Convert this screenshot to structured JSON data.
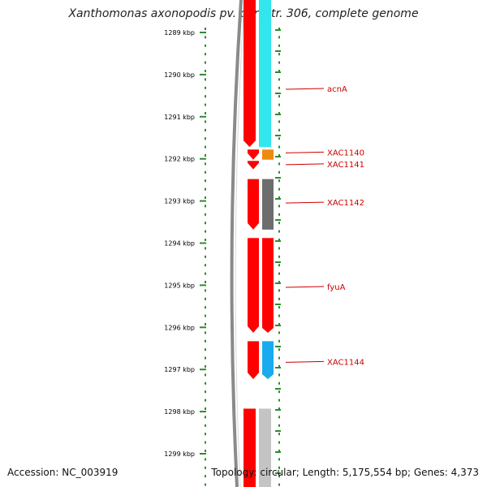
{
  "title": "Xanthomonas axonopodis pv. citri str. 306, complete genome",
  "footer": {
    "accession": "Accession: NC_003919",
    "topology": "Topology: circular; Length: 5,175,554 bp; Genes: 4,373"
  },
  "ruler": {
    "ticks": [
      {
        "kbp": 1289,
        "label": "1289 kbp"
      },
      {
        "kbp": 1290,
        "label": "1290 kbp"
      },
      {
        "kbp": 1291,
        "label": "1291 kbp"
      },
      {
        "kbp": 1292,
        "label": "1292 kbp"
      },
      {
        "kbp": 1293,
        "label": "1293 kbp"
      },
      {
        "kbp": 1294,
        "label": "1294 kbp"
      },
      {
        "kbp": 1295,
        "label": "1295 kbp"
      },
      {
        "kbp": 1296,
        "label": "1296 kbp"
      },
      {
        "kbp": 1297,
        "label": "1297 kbp"
      },
      {
        "kbp": 1298,
        "label": "1298 kbp"
      },
      {
        "kbp": 1299,
        "label": "1299 kbp"
      }
    ]
  },
  "genes": [
    {
      "name": "acnA",
      "start_kbp": 1288.5,
      "end_kbp": 1291.72,
      "color": "#33e6ee",
      "label_kbp": 1290.33
    },
    {
      "name": "XAC1140",
      "start_kbp": 1291.78,
      "end_kbp": 1292.02,
      "color": "#ee8a10",
      "label_kbp": 1291.84
    },
    {
      "name": "XAC1141",
      "start_kbp": 1292.05,
      "end_kbp": 1292.25,
      "color": "#ff0000",
      "label_kbp": 1292.12
    },
    {
      "name": "XAC1142",
      "start_kbp": 1292.48,
      "end_kbp": 1293.68,
      "color": "#6d6d6d",
      "label_kbp": 1293.03
    },
    {
      "name": "fyuA",
      "start_kbp": 1293.88,
      "end_kbp": 1296.13,
      "color": "#ff0000",
      "label_kbp": 1295.03
    },
    {
      "name": "XAC1144",
      "start_kbp": 1296.33,
      "end_kbp": 1297.23,
      "color": "#1aaaee",
      "label_kbp": 1296.81
    },
    {
      "name": "",
      "start_kbp": 1297.93,
      "end_kbp": 1299.5,
      "color": "#c4c4c4",
      "label_kbp": null
    }
  ],
  "colors": {
    "cds": "#ff0000",
    "backbone": "#8a8a8a",
    "ruler_dots": "#2e8b2e",
    "label": "#cc0000"
  }
}
